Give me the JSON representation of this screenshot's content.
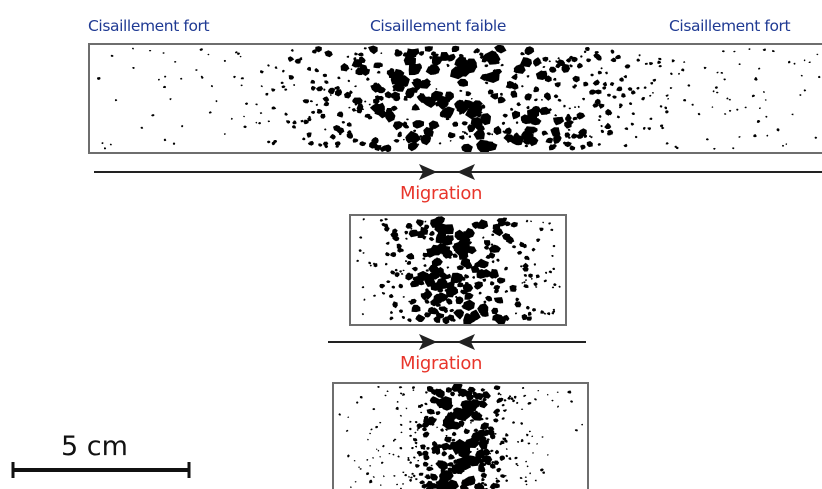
{
  "labels": {
    "shear_strong_left": "Cisaillement fort",
    "shear_weak": "Cisaillement faible",
    "shear_strong_right": "Cisaillement fort",
    "migration_1": "Migration",
    "migration_2": "Migration",
    "scale": "5 cm"
  },
  "colors": {
    "shear_label": "#1f3a93",
    "migration_label": "#e8352b",
    "box_stroke": "#6e6e6e",
    "particle": "#000000",
    "line": "#222222"
  },
  "icons": {
    "arrow": "filled-arrowhead"
  }
}
